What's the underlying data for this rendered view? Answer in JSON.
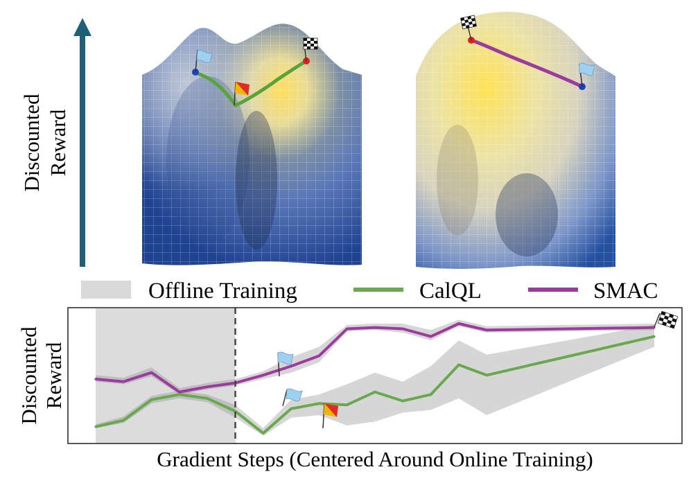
{
  "top": {
    "y_axis_label_line1": "Discounted",
    "y_axis_label_line2": "Reward",
    "arrow_color": "#1f5f7a",
    "surface_colors": [
      "#1e3f8a",
      "#3c66b0",
      "#8ea7c4",
      "#d8d5b8",
      "#f2e27a",
      "#ffd84a"
    ],
    "left_path_color": "#5aa33b",
    "right_path_color": "#9b3aa0"
  },
  "legend": {
    "items": [
      {
        "label": "Offline Training",
        "kind": "band",
        "color": "#d9d9d9"
      },
      {
        "label": "CalQL",
        "kind": "line",
        "color": "#6aa84f"
      },
      {
        "label": "SMAC",
        "kind": "line",
        "color": "#9c3b9e"
      }
    ]
  },
  "chart_data": {
    "type": "line",
    "xlabel": "Gradient Steps (Centered Around Online Training)",
    "ylabel_line1": "Discounted",
    "ylabel_line2": "Reward",
    "xlim": [
      -5,
      15
    ],
    "ylim": [
      0,
      100
    ],
    "offline_region": [
      -5,
      0
    ],
    "divider_x": 0,
    "x": [
      -5,
      -4,
      -3,
      -2,
      -1,
      0,
      1,
      2,
      3,
      4,
      5,
      6,
      7,
      8,
      9,
      10,
      11,
      12,
      13,
      14,
      15
    ],
    "series": [
      {
        "name": "CalQL",
        "color": "#6aa84f",
        "values": [
          13,
          18,
          34,
          38,
          35,
          25,
          8,
          27,
          31,
          30,
          40,
          33,
          38,
          61,
          53,
          83
        ],
        "x": [
          -5,
          -4,
          -3,
          -2,
          -1,
          0,
          1,
          2,
          3,
          4,
          5,
          6,
          7,
          8,
          9,
          15
        ],
        "band_lower": [
          12,
          16,
          31,
          35,
          32,
          20,
          6,
          20,
          22,
          14,
          17,
          24,
          26,
          35,
          22,
          75
        ],
        "band_upper": [
          15,
          21,
          37,
          41,
          38,
          30,
          12,
          34,
          38,
          46,
          55,
          48,
          60,
          80,
          69,
          92
        ]
      },
      {
        "name": "SMAC",
        "color": "#9c3b9e",
        "values": [
          50,
          48,
          55,
          40,
          44,
          47,
          53,
          60,
          68,
          89,
          90,
          89,
          83,
          93,
          88,
          90
        ],
        "x": [
          -5,
          -4,
          -3,
          -2,
          -1,
          0,
          1,
          2,
          3,
          4,
          5,
          6,
          7,
          8,
          9,
          15
        ],
        "band_lower": [
          48,
          46,
          52,
          38,
          42,
          45,
          50,
          55,
          63,
          87,
          88,
          86,
          80,
          91,
          86,
          88
        ],
        "band_upper": [
          53,
          51,
          59,
          43,
          47,
          50,
          56,
          67,
          75,
          92,
          93,
          93,
          88,
          96,
          91,
          93
        ]
      }
    ],
    "grid": false
  }
}
